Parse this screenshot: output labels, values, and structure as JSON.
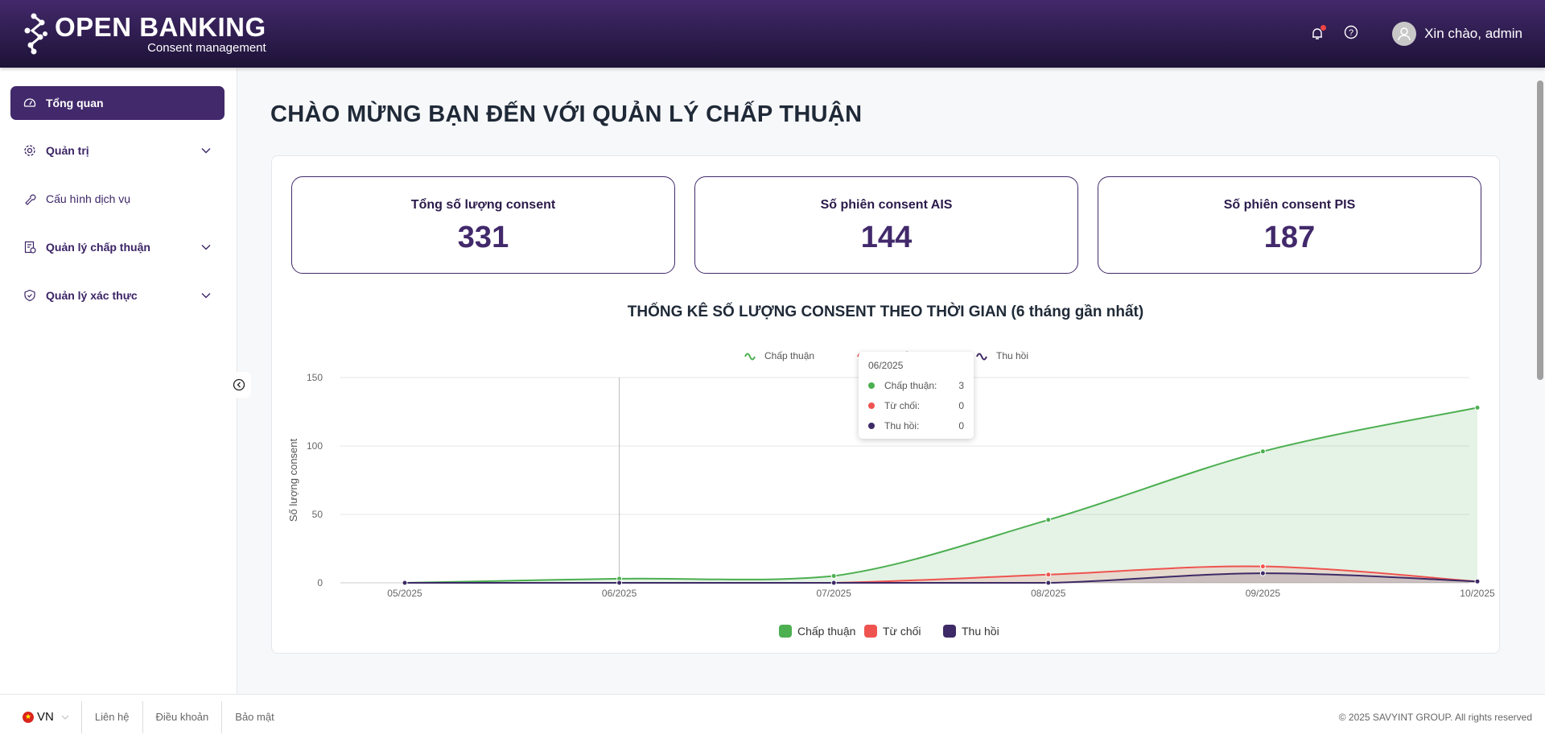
{
  "header": {
    "logo_main": "OPEN BANKING",
    "logo_sub": "Consent management",
    "greeting": "Xin chào, admin"
  },
  "sidebar": {
    "items": [
      {
        "label": "Tổng quan",
        "icon": "dashboard-icon",
        "active": true
      },
      {
        "label": "Quản trị",
        "icon": "gear-icon",
        "expandable": true
      },
      {
        "label": "Cấu hình dịch vụ",
        "icon": "wrench-icon"
      },
      {
        "label": "Quản lý chấp thuận",
        "icon": "document-check-icon",
        "expandable": true
      },
      {
        "label": "Quản lý xác thực",
        "icon": "shield-check-icon",
        "expandable": true
      }
    ]
  },
  "main": {
    "title": "CHÀO MỪNG BẠN ĐẾN VỚI QUẢN LÝ CHẤP THUẬN",
    "stats": [
      {
        "label": "Tổng số lượng consent",
        "value": "331"
      },
      {
        "label": "Số phiên consent AIS",
        "value": "144"
      },
      {
        "label": "Số phiên consent PIS",
        "value": "187"
      }
    ]
  },
  "tooltip": {
    "title": "06/2025",
    "rows": [
      {
        "label": "Chấp thuận:",
        "value": "3"
      },
      {
        "label": "Từ chối:",
        "value": "0"
      },
      {
        "label": "Thu hồi:",
        "value": "0"
      }
    ]
  },
  "chart_data": {
    "type": "area",
    "title": "THỐNG KÊ SỐ LƯỢNG CONSENT THEO THỜI GIAN (6 tháng gần nhất)",
    "ylabel": "Số lượng consent",
    "xlabel": "",
    "ylim": [
      0,
      150
    ],
    "yticks": [
      0,
      50,
      100,
      150
    ],
    "grid": true,
    "legend": "top and bottom",
    "categories": [
      "05/2025",
      "06/2025",
      "07/2025",
      "08/2025",
      "09/2025",
      "10/2025"
    ],
    "series": [
      {
        "name": "Chấp thuận",
        "color": "#4caf50",
        "values": [
          0,
          3,
          5,
          46,
          96,
          128
        ]
      },
      {
        "name": "Từ chối",
        "color": "#ef5350",
        "values": [
          0,
          0,
          0,
          6,
          12,
          1
        ]
      },
      {
        "name": "Thu hồi",
        "color": "#3d2a66",
        "values": [
          0,
          0,
          0,
          0,
          7,
          1
        ]
      }
    ]
  },
  "footer": {
    "lang": "VN",
    "links": [
      "Liên hệ",
      "Điều khoản",
      "Bảo mật"
    ],
    "copyright": "© 2025 SAVYINT GROUP. All rights reserved"
  }
}
